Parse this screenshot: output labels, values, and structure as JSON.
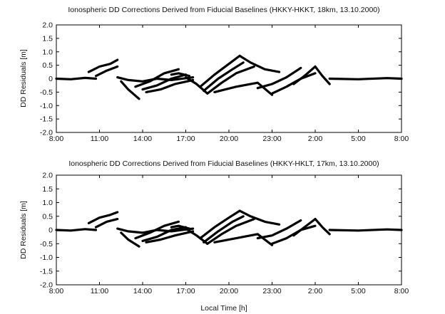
{
  "chart_data": [
    {
      "type": "scatter",
      "title": "Ionospheric DD Corrections Derived from Fiducial Baselines (HKKY-HKKT, 18km, 13.10.2000)",
      "xlabel": "",
      "ylabel": "DD Residuals [m]",
      "x_ticks": [
        "8:00",
        "11:00",
        "14:00",
        "17:00",
        "20:00",
        "23:00",
        "2:00",
        "5:00",
        "8:00"
      ],
      "y_ticks": [
        "2.0",
        "1.5",
        "1.0",
        "0.5",
        "0",
        "-0.5",
        "-1.0",
        "-1.5",
        "-2.0"
      ],
      "xlim": [
        "8:00",
        "8:00 (+1 day)"
      ],
      "ylim": [
        -2.0,
        2.0
      ],
      "grid": false,
      "series": [
        {
          "segments": [
            {
              "x": [
                "8:00",
                "9:00",
                "10:00",
                "10:45"
              ],
              "y": [
                0.0,
                -0.02,
                0.03,
                0.0
              ]
            },
            {
              "x": [
                "10:15",
                "11:00",
                "11:45",
                "12:15"
              ],
              "y": [
                0.25,
                0.45,
                0.55,
                0.7
              ]
            },
            {
              "x": [
                "10:45",
                "11:30",
                "12:15"
              ],
              "y": [
                0.1,
                0.3,
                0.45
              ]
            },
            {
              "x": [
                "12:15",
                "13:00",
                "14:00",
                "15:00",
                "16:00",
                "17:30"
              ],
              "y": [
                0.05,
                -0.05,
                -0.1,
                0.0,
                -0.05,
                0.05
              ]
            },
            {
              "x": [
                "12:30",
                "13:00",
                "13:45"
              ],
              "y": [
                -0.1,
                -0.4,
                -0.75
              ]
            },
            {
              "x": [
                "13:30",
                "14:30",
                "15:30",
                "16:30"
              ],
              "y": [
                -0.3,
                -0.1,
                0.2,
                0.35
              ]
            },
            {
              "x": [
                "14:00",
                "15:00",
                "16:00",
                "17:00"
              ],
              "y": [
                -0.4,
                -0.25,
                0.0,
                0.15
              ]
            },
            {
              "x": [
                "14:15",
                "15:15",
                "16:15",
                "17:30"
              ],
              "y": [
                -0.5,
                -0.4,
                -0.2,
                -0.05
              ]
            },
            {
              "x": [
                "16:00",
                "16:30",
                "17:15"
              ],
              "y": [
                0.15,
                0.2,
                0.1
              ]
            },
            {
              "x": [
                "17:00",
                "17:45",
                "18:30"
              ],
              "y": [
                0.05,
                -0.2,
                -0.55
              ]
            },
            {
              "x": [
                "18:00",
                "19:00",
                "20:00",
                "20:45"
              ],
              "y": [
                -0.3,
                0.15,
                0.55,
                0.85
              ]
            },
            {
              "x": [
                "18:15",
                "19:15",
                "20:15",
                "21:00"
              ],
              "y": [
                -0.45,
                0.0,
                0.35,
                0.6
              ]
            },
            {
              "x": [
                "18:30",
                "19:30",
                "20:30",
                "21:45"
              ],
              "y": [
                -0.55,
                -0.15,
                0.2,
                0.45
              ]
            },
            {
              "x": [
                "19:00",
                "20:30",
                "22:00",
                "23:00"
              ],
              "y": [
                -0.5,
                -0.3,
                -0.15,
                -0.6
              ]
            },
            {
              "x": [
                "20:45",
                "21:30",
                "22:30",
                "23:30"
              ],
              "y": [
                0.85,
                0.6,
                0.35,
                0.25
              ]
            },
            {
              "x": [
                "22:00",
                "23:00",
                "0:00",
                "1:00"
              ],
              "y": [
                -0.35,
                -0.2,
                0.05,
                0.4
              ]
            },
            {
              "x": [
                "23:00",
                "0:00",
                "1:00",
                "2:00"
              ],
              "y": [
                -0.55,
                -0.3,
                0.0,
                0.2
              ]
            },
            {
              "x": [
                "0:30",
                "1:15",
                "2:00"
              ],
              "y": [
                -0.2,
                0.1,
                0.45
              ]
            },
            {
              "x": [
                "2:00",
                "2:30",
                "3:00"
              ],
              "y": [
                0.45,
                0.1,
                -0.2
              ]
            },
            {
              "x": [
                "3:00",
                "5:00",
                "7:00",
                "8:00"
              ],
              "y": [
                0.0,
                -0.02,
                0.02,
                0.0
              ]
            }
          ]
        }
      ]
    },
    {
      "type": "scatter",
      "title": "Ionospheric DD Corrections Derived from Fiducial Baselines (HKKY-HKLT, 17km, 13.10.2000)",
      "xlabel": "Local Time [h]",
      "ylabel": "DD Residuals [m]",
      "x_ticks": [
        "8:00",
        "11:00",
        "14:00",
        "17:00",
        "20:00",
        "23:00",
        "2:00",
        "5:00",
        "8:00"
      ],
      "y_ticks": [
        "2.0",
        "1.5",
        "1.0",
        "0.5",
        "0",
        "-0.5",
        "-1.0",
        "-1.5",
        "-2.0"
      ],
      "xlim": [
        "8:00",
        "8:00 (+1 day)"
      ],
      "ylim": [
        -2.0,
        2.0
      ],
      "grid": false,
      "series": [
        {
          "segments": [
            {
              "x": [
                "8:00",
                "9:00",
                "10:00",
                "10:45"
              ],
              "y": [
                0.0,
                -0.02,
                0.03,
                0.0
              ]
            },
            {
              "x": [
                "10:15",
                "11:00",
                "11:45",
                "12:15"
              ],
              "y": [
                0.25,
                0.45,
                0.55,
                0.65
              ]
            },
            {
              "x": [
                "10:45",
                "11:30",
                "12:15"
              ],
              "y": [
                0.1,
                0.3,
                0.4
              ]
            },
            {
              "x": [
                "12:15",
                "13:00",
                "14:00",
                "15:00",
                "16:00",
                "17:30"
              ],
              "y": [
                0.05,
                -0.05,
                -0.1,
                0.0,
                -0.05,
                0.05
              ]
            },
            {
              "x": [
                "12:30",
                "13:00",
                "13:45"
              ],
              "y": [
                -0.1,
                -0.35,
                -0.6
              ]
            },
            {
              "x": [
                "13:30",
                "14:30",
                "15:30",
                "16:30"
              ],
              "y": [
                -0.3,
                -0.1,
                0.15,
                0.3
              ]
            },
            {
              "x": [
                "14:00",
                "15:00",
                "16:00",
                "17:00"
              ],
              "y": [
                -0.4,
                -0.25,
                0.0,
                0.1
              ]
            },
            {
              "x": [
                "14:15",
                "15:15",
                "16:15",
                "17:30"
              ],
              "y": [
                -0.45,
                -0.35,
                -0.2,
                -0.05
              ]
            },
            {
              "x": [
                "16:00",
                "16:30",
                "17:15"
              ],
              "y": [
                0.1,
                0.15,
                0.05
              ]
            },
            {
              "x": [
                "17:00",
                "17:45",
                "18:30"
              ],
              "y": [
                0.05,
                -0.2,
                -0.5
              ]
            },
            {
              "x": [
                "18:00",
                "19:00",
                "20:00",
                "20:45"
              ],
              "y": [
                -0.3,
                0.1,
                0.45,
                0.7
              ]
            },
            {
              "x": [
                "18:15",
                "19:15",
                "20:15",
                "21:00"
              ],
              "y": [
                -0.45,
                -0.05,
                0.3,
                0.5
              ]
            },
            {
              "x": [
                "18:30",
                "19:30",
                "20:30",
                "21:45"
              ],
              "y": [
                -0.5,
                -0.15,
                0.15,
                0.4
              ]
            },
            {
              "x": [
                "19:00",
                "20:30",
                "22:00",
                "23:00"
              ],
              "y": [
                -0.45,
                -0.3,
                -0.15,
                -0.55
              ]
            },
            {
              "x": [
                "20:45",
                "21:30",
                "22:30",
                "23:30"
              ],
              "y": [
                0.7,
                0.5,
                0.3,
                0.2
              ]
            },
            {
              "x": [
                "22:00",
                "23:00",
                "0:00",
                "1:00"
              ],
              "y": [
                -0.3,
                -0.2,
                0.05,
                0.35
              ]
            },
            {
              "x": [
                "23:00",
                "0:00",
                "1:00",
                "2:00"
              ],
              "y": [
                -0.5,
                -0.3,
                0.0,
                0.15
              ]
            },
            {
              "x": [
                "0:30",
                "1:15",
                "2:00"
              ],
              "y": [
                -0.2,
                0.1,
                0.4
              ]
            },
            {
              "x": [
                "2:00",
                "2:30",
                "3:00"
              ],
              "y": [
                0.4,
                0.1,
                -0.15
              ]
            },
            {
              "x": [
                "3:00",
                "5:00",
                "7:00",
                "8:00"
              ],
              "y": [
                0.0,
                -0.02,
                0.02,
                0.0
              ]
            }
          ]
        }
      ]
    }
  ]
}
